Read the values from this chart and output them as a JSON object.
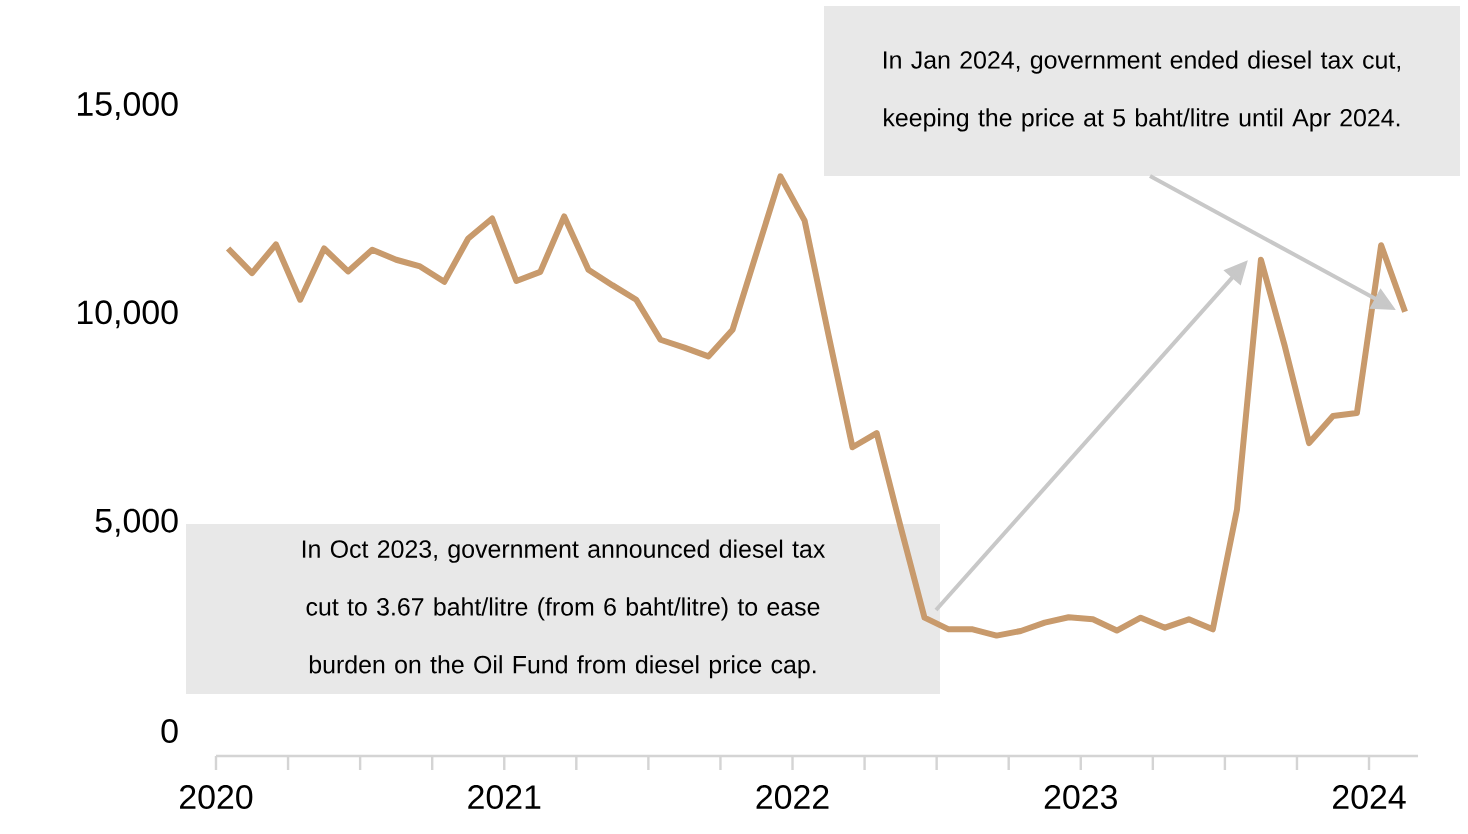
{
  "chart_data": {
    "type": "line",
    "x": [
      2020.042,
      2020.125,
      2020.208,
      2020.292,
      2020.375,
      2020.458,
      2020.542,
      2020.625,
      2020.708,
      2020.792,
      2020.875,
      2020.958,
      2021.042,
      2021.125,
      2021.208,
      2021.292,
      2021.375,
      2021.458,
      2021.542,
      2021.625,
      2021.708,
      2021.792,
      2021.875,
      2021.958,
      2022.042,
      2022.125,
      2022.208,
      2022.292,
      2022.375,
      2022.458,
      2022.542,
      2022.625,
      2022.708,
      2022.792,
      2022.875,
      2022.958,
      2023.042,
      2023.125,
      2023.208,
      2023.292,
      2023.375,
      2023.458,
      2023.542,
      2023.625,
      2023.708,
      2023.792,
      2023.875,
      2023.958,
      2024.042,
      2024.125
    ],
    "series": [
      {
        "color": "#c89a6c",
        "values": [
          11580,
          10990,
          11680,
          10350,
          11580,
          11030,
          11550,
          11310,
          11150,
          10780,
          11820,
          12300,
          10800,
          11020,
          12350,
          11070,
          10700,
          10350,
          9390,
          9200,
          8990,
          9630,
          11470,
          13310,
          12250,
          9500,
          6810,
          7150,
          4900,
          2720,
          2440,
          2440,
          2290,
          2400,
          2600,
          2730,
          2680,
          2410,
          2720,
          2480,
          2680,
          2440,
          5320,
          11310,
          9230,
          6910,
          7560,
          7630,
          11660,
          10060
        ]
      }
    ],
    "xlim": [
      2020,
      2024.17
    ],
    "xticks": [
      2020,
      {
        "value": 2020.25,
        "label": null
      },
      {
        "value": 2020.5,
        "label": null
      },
      {
        "value": 2020.75,
        "label": null
      },
      2021,
      {
        "value": 2021.25,
        "label": null
      },
      {
        "value": 2021.5,
        "label": null
      },
      {
        "value": 2021.75,
        "label": null
      },
      2022,
      {
        "value": 2022.25,
        "label": null
      },
      {
        "value": 2022.5,
        "label": null
      },
      {
        "value": 2022.75,
        "label": null
      },
      2023,
      {
        "value": 2023.25,
        "label": null
      },
      {
        "value": 2023.5,
        "label": null
      },
      {
        "value": 2023.75,
        "label": null
      },
      2024
    ],
    "ylim": [
      -600,
      15000
    ],
    "yticks": [
      0,
      {
        "value": 5000,
        "label": "5,000"
      },
      {
        "value": 10000,
        "label": "10,000"
      },
      {
        "value": 15000,
        "label": "15,000"
      }
    ],
    "grid": false,
    "legend": false,
    "marker": "none",
    "line_style": "solid",
    "annotations": [
      "In Oct 2023, government announced diesel tax cut to 3.67 baht/litre (from 6 baht/litre) to ease burden on the Oil Fund from diesel price cap.",
      "In Jan 2024, government ended diesel tax cut, keeping the price at 5 baht/litre until Apr 2024."
    ]
  }
}
